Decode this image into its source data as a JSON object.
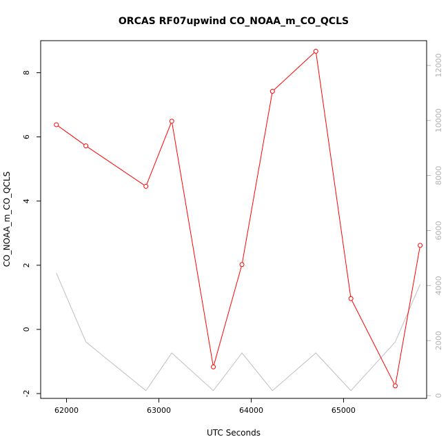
{
  "chart_data": {
    "type": "line",
    "title": "ORCAS RF07upwind CO_NOAA_m_CO_QCLS",
    "xlabel": "UTC Seconds",
    "ylabel": "CO_NOAA_m_CO_QCLS",
    "xlim": [
      61720,
      65900
    ],
    "ylim": [
      -2.15,
      9.0
    ],
    "y2lim": [
      -100,
      12900
    ],
    "x_ticks": [
      62000,
      63000,
      64000,
      65000
    ],
    "y_ticks": [
      -2,
      0,
      2,
      4,
      6,
      8
    ],
    "y2_ticks": [
      0,
      2000,
      4000,
      6000,
      8000,
      10000,
      12000
    ],
    "grid": false,
    "series": [
      {
        "color": "#ff0000",
        "axis": "left",
        "marker": "open-circle",
        "x": [
          61890,
          62210,
          62860,
          63140,
          63590,
          63900,
          64230,
          64700,
          65080,
          65560,
          65830
        ],
        "y": [
          6.38,
          5.72,
          4.46,
          6.49,
          -1.17,
          2.02,
          7.42,
          8.67,
          0.96,
          -1.76,
          2.62
        ]
      },
      {
        "color": "#bebebe",
        "axis": "right",
        "marker": "none",
        "x": [
          61890,
          62210,
          62860,
          63140,
          63590,
          63900,
          64230,
          64700,
          65080,
          65560,
          65830
        ],
        "y": [
          4450,
          1950,
          180,
          1550,
          180,
          1550,
          180,
          1550,
          180,
          1950,
          4050
        ]
      }
    ]
  }
}
